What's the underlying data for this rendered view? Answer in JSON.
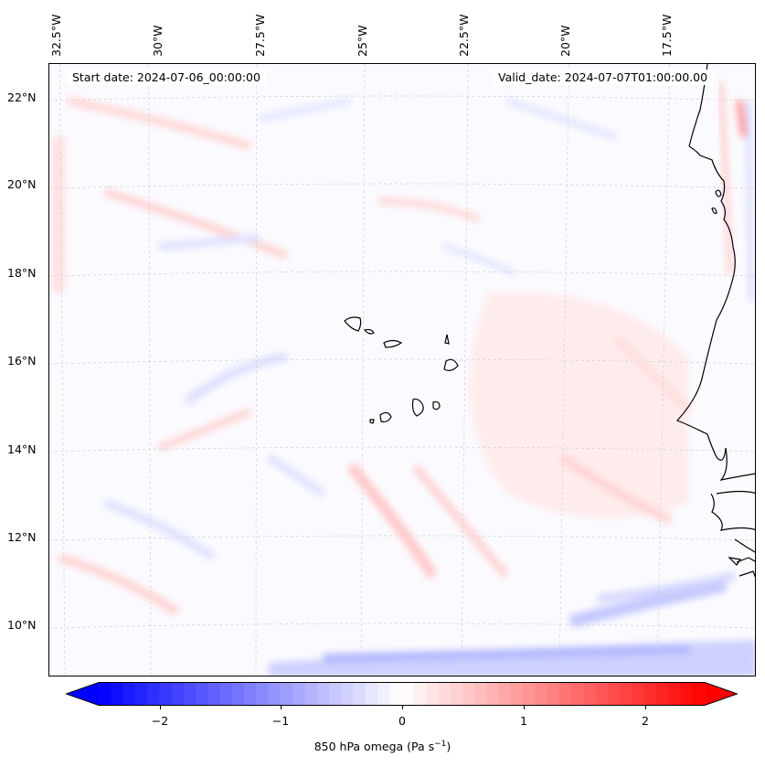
{
  "map": {
    "start_date_label": "Start date: 2024-07-06_00:00:00",
    "valid_date_label": "Valid_date: 2024-07-07T01:00:00.00",
    "longitude_labels": [
      "32.5°W",
      "30°W",
      "27.5°W",
      "25°W",
      "22.5°W",
      "20°W",
      "17.5°W"
    ],
    "latitude_labels": [
      "22°N",
      "20°N",
      "18°N",
      "16°N",
      "14°N",
      "12°N",
      "10°N"
    ],
    "variable": "850 hPa omega",
    "colors": {
      "negative": "#0000ff",
      "positive": "#ff0000",
      "neutral": "#ffffff",
      "coast": "#000000"
    }
  },
  "colorbar": {
    "label_text": "850 hPa omega (Pa s",
    "label_exponent": "−1",
    "label_close": ")",
    "ticks": [
      "−2",
      "−1",
      "0",
      "1",
      "2"
    ],
    "range": [
      -2.75,
      2.75
    ]
  }
}
